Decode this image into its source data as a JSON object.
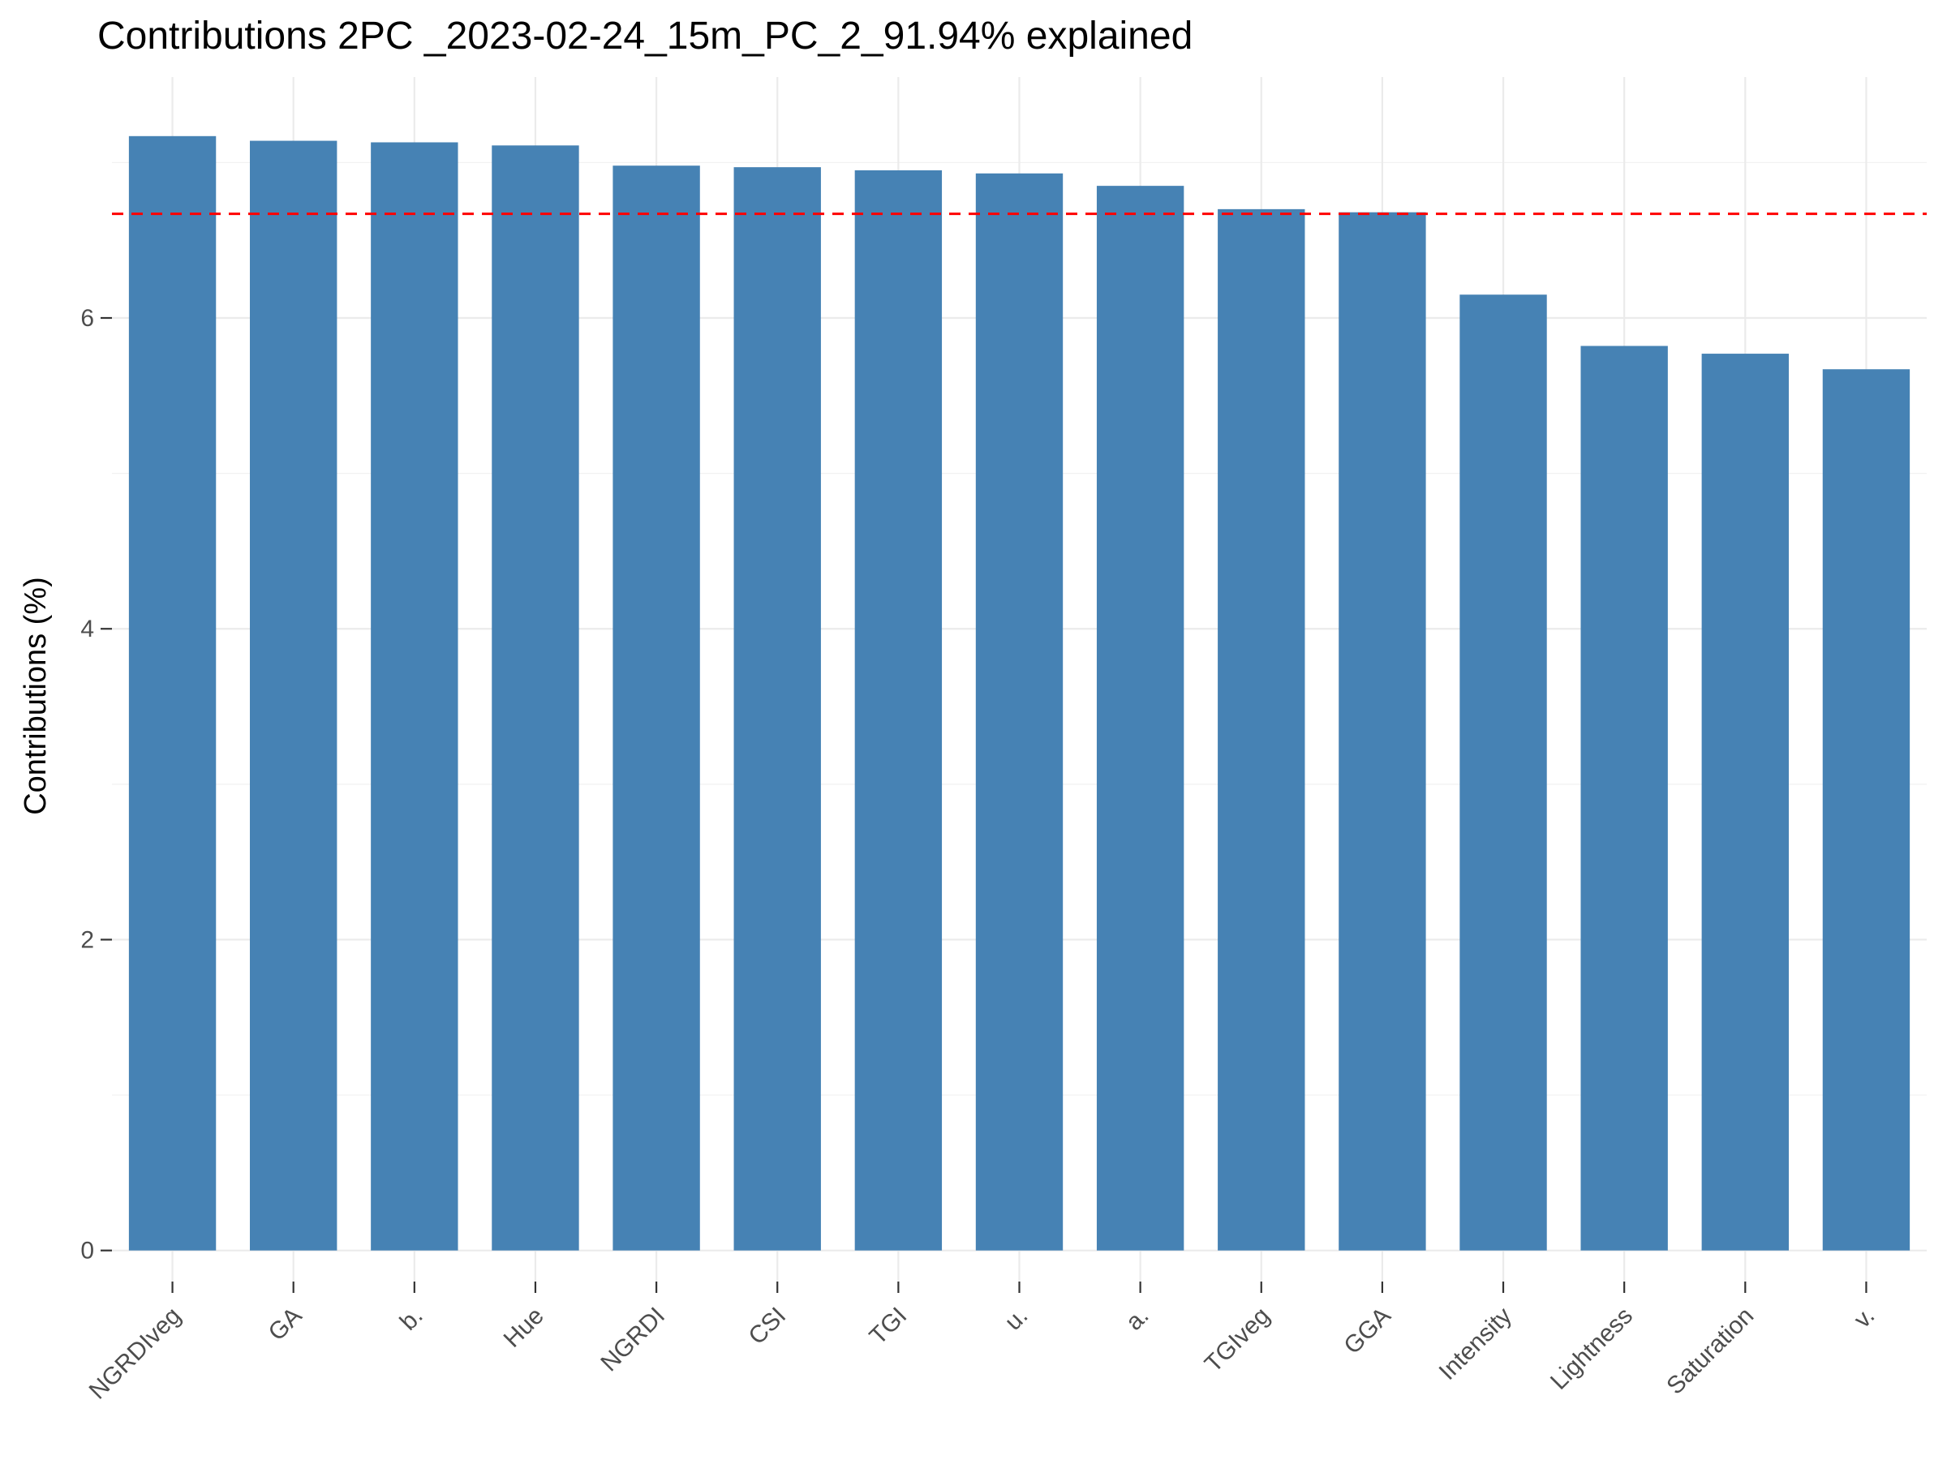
{
  "chart_data": {
    "type": "bar",
    "title": "Contributions 2PC _2023-02-24_15m_PC_2_91.94% explained",
    "xlabel": "",
    "ylabel": "Contributions (%)",
    "categories": [
      "NGRDIveg",
      "GA",
      "b.",
      "Hue",
      "NGRDI",
      "CSI",
      "TGI",
      "u.",
      "a.",
      "TGIveg",
      "GGA",
      "Intensity",
      "Lightness",
      "Saturation",
      "v."
    ],
    "values": [
      7.17,
      7.14,
      7.13,
      7.11,
      6.98,
      6.97,
      6.95,
      6.93,
      6.85,
      6.7,
      6.68,
      6.15,
      5.82,
      5.77,
      5.67
    ],
    "reference_line": {
      "value": 6.67,
      "style": "dashed",
      "color": "#ff0000"
    },
    "ylim": [
      -0.2,
      7.55
    ],
    "yticks": [
      0,
      2,
      4,
      6
    ],
    "bar_color": "#4682b4",
    "grid": true
  }
}
